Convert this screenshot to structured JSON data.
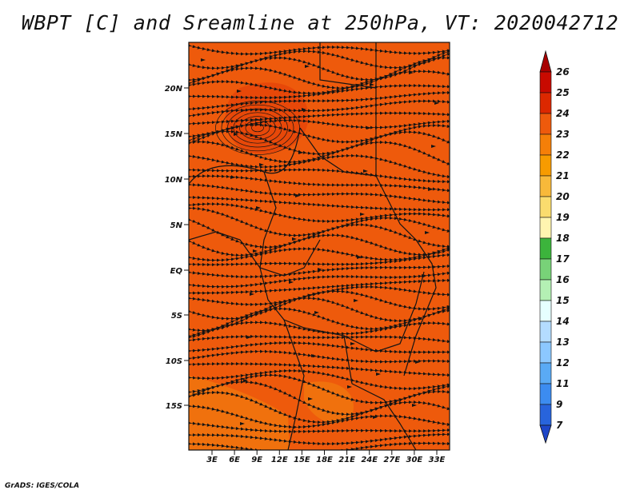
{
  "title": "WBPT [C] and Sreamline at 250hPa, VT: 2020042712",
  "footer": "GrADS: IGES/COLA",
  "map": {
    "lat_ticks": [
      "20N",
      "15N",
      "10N",
      "5N",
      "EQ",
      "5S",
      "10S",
      "15S"
    ],
    "lon_ticks": [
      "3E",
      "6E",
      "9E",
      "12E",
      "15E",
      "18E",
      "21E",
      "24E",
      "27E",
      "30E",
      "33E"
    ],
    "background_color": "#ee5a0c",
    "warm_patch_color": "#e23a08",
    "cool_patch_color": "#f2850f",
    "line_color": "#141414"
  },
  "colorbar": {
    "labels": [
      "26",
      "25",
      "24",
      "23",
      "22",
      "21",
      "20",
      "19",
      "18",
      "17",
      "16",
      "15",
      "14",
      "13",
      "12",
      "11",
      "9",
      "7"
    ],
    "colors": [
      "#a80000",
      "#c80a00",
      "#dc2800",
      "#ee5a0c",
      "#f57f08",
      "#f79b00",
      "#f8b93a",
      "#fadc6e",
      "#fff5b0",
      "#3cb43c",
      "#78d278",
      "#b4f0b4",
      "#e6ffff",
      "#b4dcff",
      "#8cc8ff",
      "#5aaaf5",
      "#3c8cf0",
      "#2864dc",
      "#1e46c8"
    ]
  }
}
